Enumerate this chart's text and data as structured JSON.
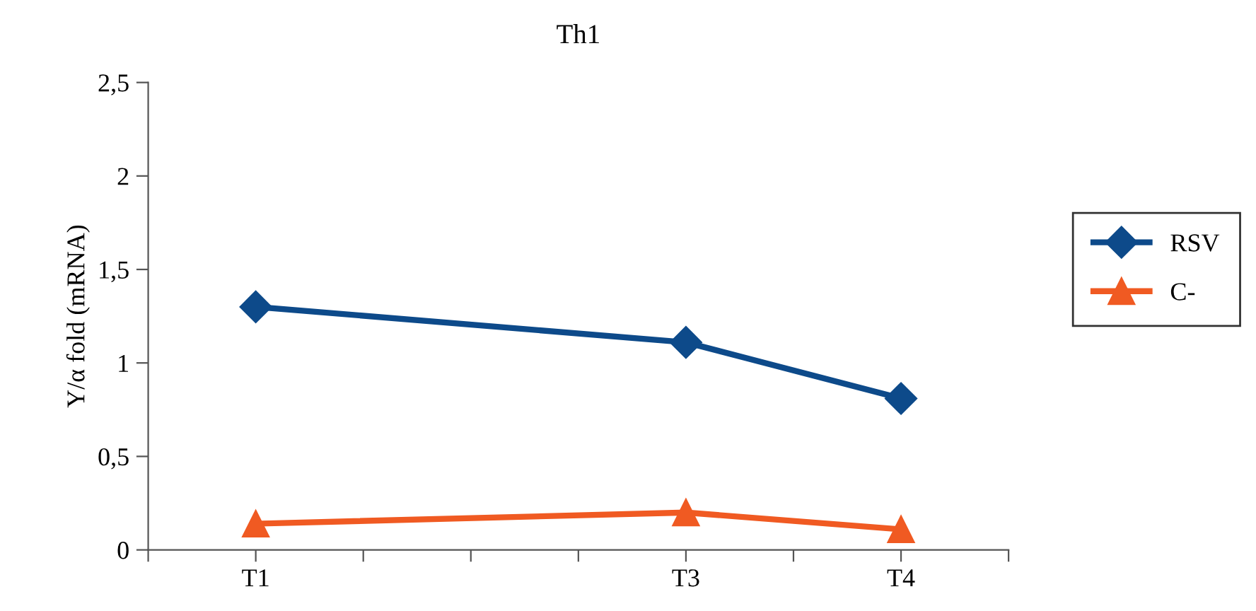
{
  "chart_data": {
    "type": "line",
    "title": "Th1",
    "ylabel": "Y/α fold (mRNA)",
    "categories": [
      null,
      "T1",
      null,
      null,
      null,
      "T3",
      null,
      "T4",
      null
    ],
    "ylim": [
      0,
      2.5
    ],
    "yticks": [
      0,
      {
        "value": 0.5,
        "label": "0,5"
      },
      1,
      {
        "value": 1.5,
        "label": "1,5"
      },
      2,
      {
        "value": 2.5,
        "label": "2,5"
      }
    ],
    "series": [
      {
        "name": "RSV",
        "color": "#0d4a8a",
        "values": [
          null,
          1.3,
          null,
          null,
          null,
          1.11,
          null,
          0.81,
          null
        ],
        "marker": "diamond"
      },
      {
        "name": "C-",
        "color": "#f05a22",
        "values": [
          null,
          0.14,
          null,
          null,
          null,
          0.2,
          null,
          0.11,
          null
        ],
        "marker": "triangle"
      }
    ],
    "legend": "right",
    "line_style": "solid"
  }
}
